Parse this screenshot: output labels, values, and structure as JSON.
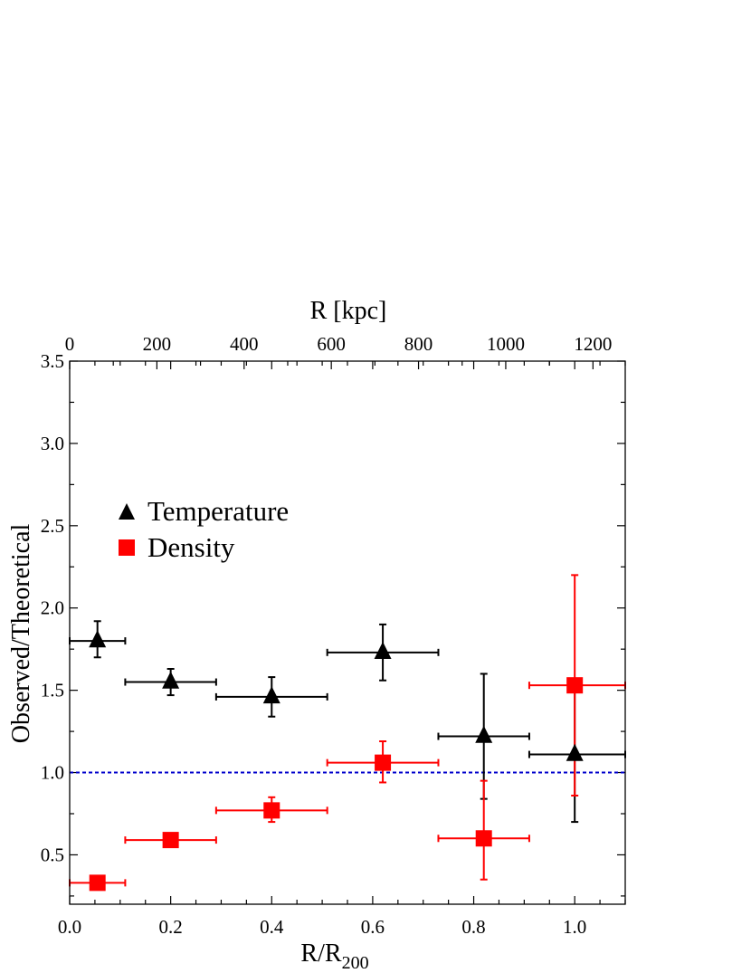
{
  "chart_data": {
    "type": "scatter",
    "title": "",
    "xlabel": "R/R",
    "xlabel_sub": "200",
    "ylabel": "Observed/Theoretical",
    "x2label": "R [kpc]",
    "xlim": [
      0.0,
      1.1
    ],
    "ylim": [
      0.2,
      3.5
    ],
    "x2lim": [
      0,
      1274
    ],
    "xticks": [
      "0.0",
      "0.2",
      "0.4",
      "0.6",
      "0.8",
      "1.0"
    ],
    "yticks": [
      "0.5",
      "1.0",
      "1.5",
      "2.0",
      "2.5",
      "3.0",
      "3.5"
    ],
    "x2ticks": [
      "0",
      "200",
      "400",
      "600",
      "800",
      "1000",
      "1200"
    ],
    "grid": false,
    "legend_position": "upper-left",
    "reference_line": {
      "y": 1.0,
      "style": "dotted",
      "color": "#0000cc"
    },
    "series": [
      {
        "name": "Temperature",
        "marker": "triangle",
        "color": "#000000",
        "points": [
          {
            "x": 0.055,
            "y": 1.8,
            "xlo": 0.0,
            "xhi": 0.11,
            "ylo": 1.7,
            "yhi": 1.92
          },
          {
            "x": 0.2,
            "y": 1.55,
            "xlo": 0.11,
            "xhi": 0.29,
            "ylo": 1.47,
            "yhi": 1.63
          },
          {
            "x": 0.4,
            "y": 1.46,
            "xlo": 0.29,
            "xhi": 0.51,
            "ylo": 1.34,
            "yhi": 1.58
          },
          {
            "x": 0.62,
            "y": 1.73,
            "xlo": 0.51,
            "xhi": 0.73,
            "ylo": 1.56,
            "yhi": 1.9
          },
          {
            "x": 0.82,
            "y": 1.22,
            "xlo": 0.73,
            "xhi": 0.91,
            "ylo": 0.84,
            "yhi": 1.6
          },
          {
            "x": 1.0,
            "y": 1.11,
            "xlo": 0.91,
            "xhi": 1.1,
            "ylo": 0.7,
            "yhi": 1.52
          }
        ]
      },
      {
        "name": "Density",
        "marker": "square",
        "color": "#ff0000",
        "points": [
          {
            "x": 0.055,
            "y": 0.33,
            "xlo": 0.0,
            "xhi": 0.11,
            "ylo": 0.33,
            "yhi": 0.33
          },
          {
            "x": 0.2,
            "y": 0.59,
            "xlo": 0.11,
            "xhi": 0.29,
            "ylo": 0.59,
            "yhi": 0.59
          },
          {
            "x": 0.4,
            "y": 0.77,
            "xlo": 0.29,
            "xhi": 0.51,
            "ylo": 0.7,
            "yhi": 0.85
          },
          {
            "x": 0.62,
            "y": 1.06,
            "xlo": 0.51,
            "xhi": 0.73,
            "ylo": 0.94,
            "yhi": 1.19
          },
          {
            "x": 0.82,
            "y": 0.6,
            "xlo": 0.73,
            "xhi": 0.91,
            "ylo": 0.35,
            "yhi": 0.95
          },
          {
            "x": 1.0,
            "y": 1.53,
            "xlo": 0.91,
            "xhi": 1.1,
            "ylo": 0.86,
            "yhi": 2.2
          }
        ]
      }
    ]
  }
}
